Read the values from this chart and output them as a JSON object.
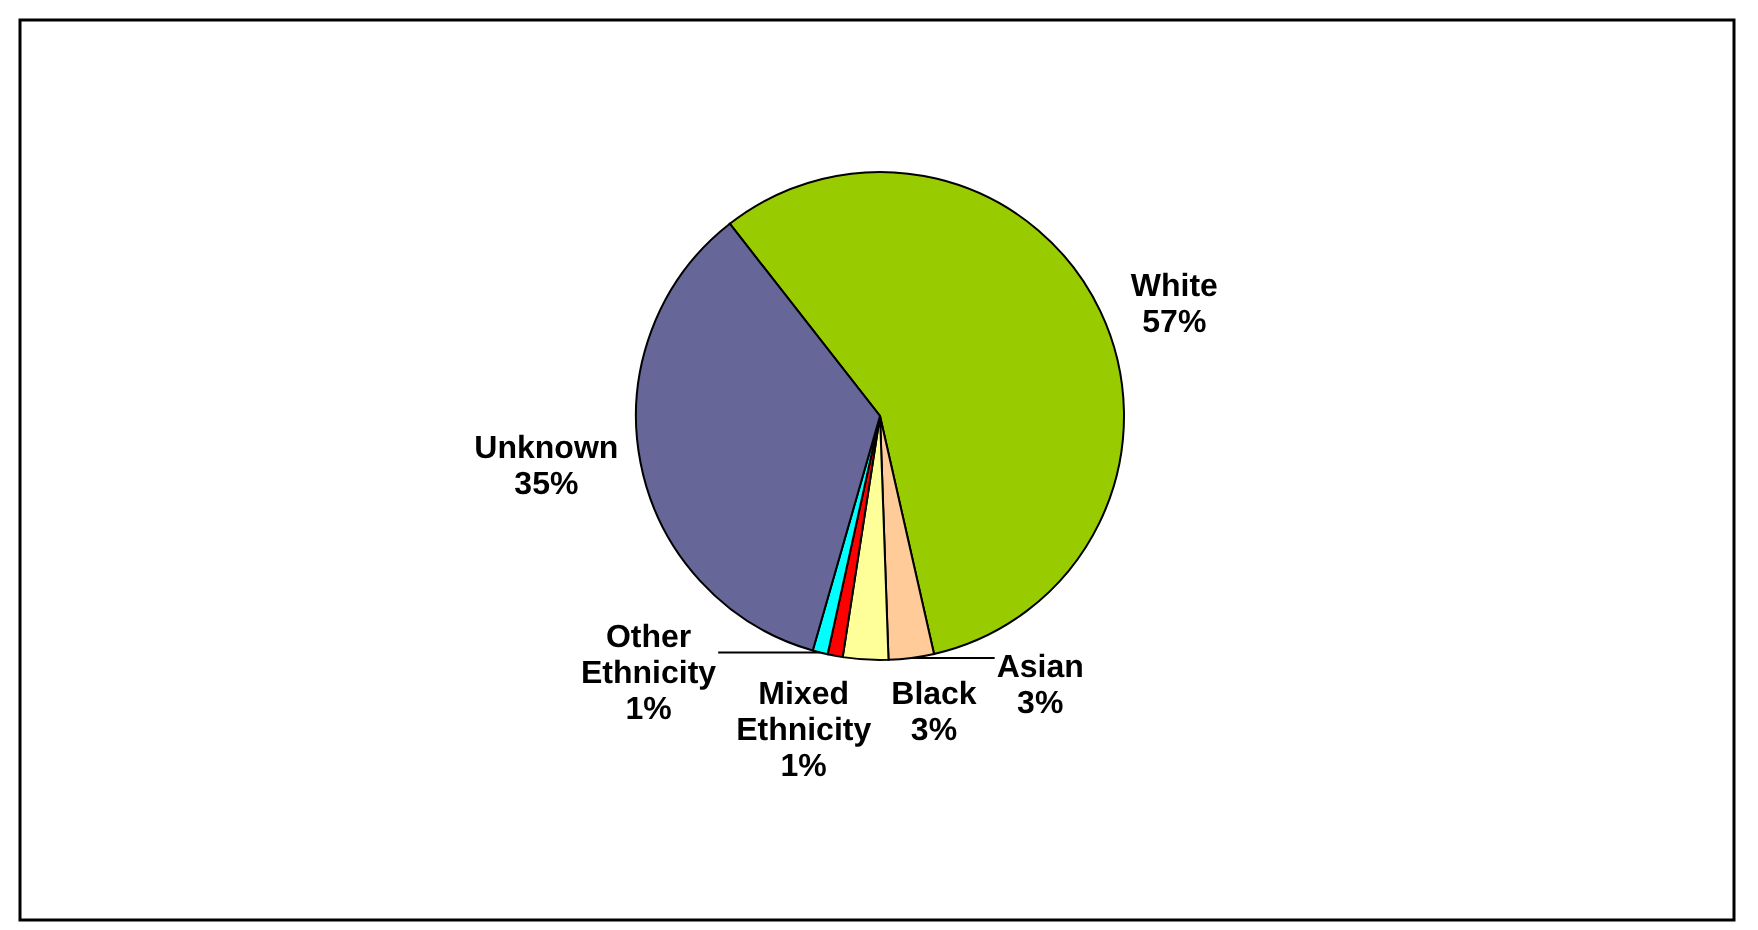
{
  "chart_data": {
    "type": "pie",
    "categories": [
      "White",
      "Asian",
      "Black",
      "Mixed Ethnicity",
      "Other Ethnicity",
      "Unknown"
    ],
    "values": [
      57,
      3,
      3,
      1,
      1,
      35
    ],
    "colors": [
      "#99cc00",
      "#ffcc99",
      "#ffff99",
      "#ff0000",
      "#00ffff",
      "#666699"
    ],
    "value_labels": [
      "57%",
      "3%",
      "3%",
      "1%",
      "1%",
      "35%"
    ]
  }
}
